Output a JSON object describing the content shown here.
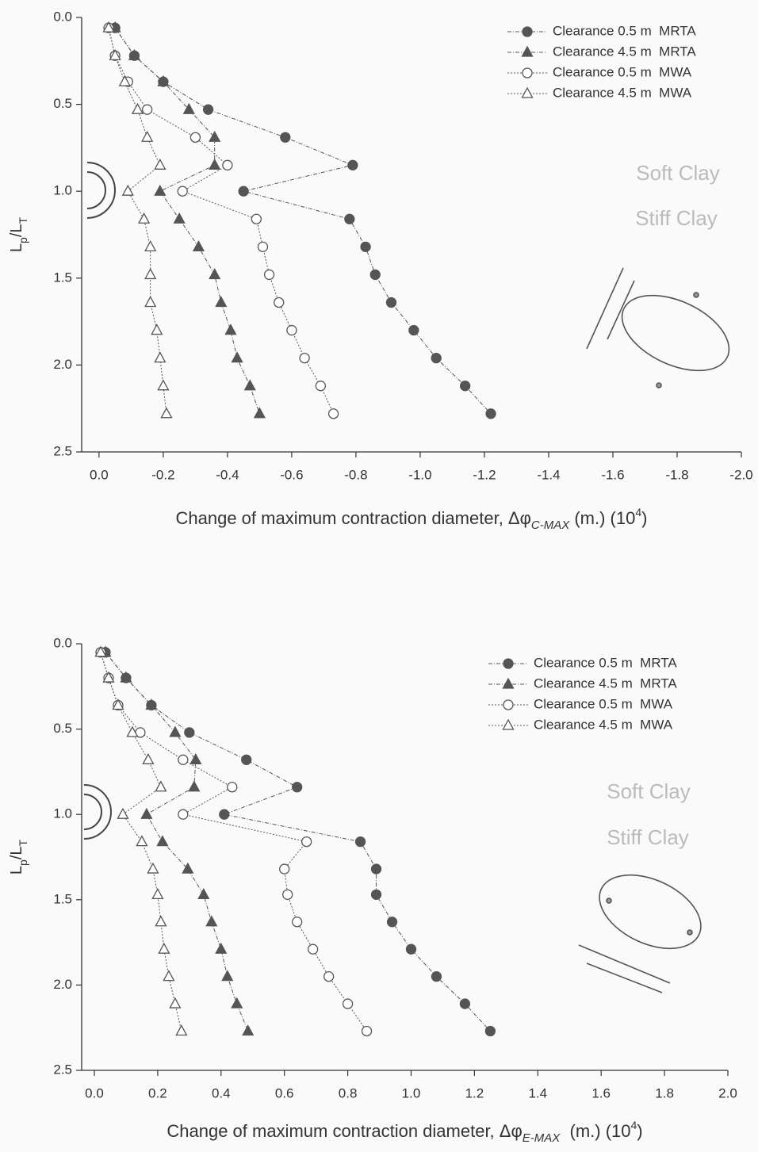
{
  "chart_data": [
    {
      "type": "line",
      "x_label": [
        "Change of maximum contraction diameter, Δφ",
        "C-MAX",
        " (m.) (10",
        "4",
        ")"
      ],
      "y_label": [
        "L",
        "p",
        "/L",
        "T"
      ],
      "xlim": [
        0.054,
        -2.0
      ],
      "xticks": [
        {
          "value": 0,
          "label": "0.0"
        },
        -0.2,
        -0.4,
        -0.6,
        -0.8,
        {
          "value": -1,
          "label": "-1.0"
        },
        -1.2,
        -1.4,
        -1.6,
        -1.8,
        {
          "value": -2,
          "label": "-2.0"
        }
      ],
      "ylim": [
        0,
        2.5
      ],
      "yticks": [
        {
          "value": 0,
          "label": "0.0"
        },
        0.5,
        {
          "value": 1,
          "label": "1.0"
        },
        1.5,
        {
          "value": 2,
          "label": "2.0"
        },
        2.5
      ],
      "legend": "upper right",
      "annotations": [
        "Soft Clay",
        "Stiff Clay"
      ],
      "series": [
        {
          "name": "Clearance 0.5 m  MRTA",
          "color": "#555555",
          "marker": "circle",
          "filled": true,
          "x": [
            -0.05,
            -0.11,
            -0.2,
            -0.34,
            -0.58,
            -0.79,
            -0.45,
            -0.78,
            -0.83,
            -0.86,
            -0.91,
            -0.98,
            -1.05,
            -1.14,
            -1.22
          ],
          "values": [
            0.06,
            0.22,
            0.37,
            0.53,
            0.69,
            0.85,
            1.0,
            1.16,
            1.32,
            1.48,
            1.64,
            1.8,
            1.96,
            2.12,
            2.28
          ]
        },
        {
          "name": "Clearance 4.5 m  MRTA",
          "color": "#555555",
          "marker": "triangle",
          "filled": true,
          "x": [
            -0.05,
            -0.11,
            -0.2,
            -0.28,
            -0.36,
            -0.36,
            -0.19,
            -0.25,
            -0.31,
            -0.36,
            -0.38,
            -0.41,
            -0.43,
            -0.47,
            -0.5
          ],
          "values": [
            0.06,
            0.22,
            0.37,
            0.53,
            0.69,
            0.85,
            1.0,
            1.16,
            1.32,
            1.48,
            1.64,
            1.8,
            1.96,
            2.12,
            2.28
          ]
        },
        {
          "name": "Clearance 0.5 m  MWA",
          "color": "#555555",
          "marker": "circle",
          "filled": false,
          "x": [
            -0.03,
            -0.05,
            -0.09,
            -0.15,
            -0.3,
            -0.4,
            -0.26,
            -0.49,
            -0.51,
            -0.53,
            -0.56,
            -0.6,
            -0.64,
            -0.69,
            -0.73
          ],
          "values": [
            0.06,
            0.22,
            0.37,
            0.53,
            0.69,
            0.85,
            1.0,
            1.16,
            1.32,
            1.48,
            1.64,
            1.8,
            1.96,
            2.12,
            2.28
          ]
        },
        {
          "name": "Clearance 4.5 m  MWA",
          "color": "#555555",
          "marker": "triangle",
          "filled": false,
          "x": [
            -0.03,
            -0.05,
            -0.08,
            -0.12,
            -0.15,
            -0.19,
            -0.09,
            -0.14,
            -0.16,
            -0.16,
            -0.16,
            -0.18,
            -0.19,
            -0.2,
            -0.21
          ],
          "values": [
            0.06,
            0.22,
            0.37,
            0.53,
            0.69,
            0.85,
            1.0,
            1.16,
            1.32,
            1.48,
            1.64,
            1.8,
            1.96,
            2.12,
            2.28
          ]
        }
      ]
    },
    {
      "type": "line",
      "x_label": [
        "Change of maximum contraction diameter, Δφ",
        "E-MAX",
        "  (m.) (10",
        "4",
        ")"
      ],
      "y_label": [
        "L",
        "p",
        "/L",
        "T"
      ],
      "xlim": [
        -0.04,
        2.0
      ],
      "xticks": [
        {
          "value": 0,
          "label": "0.0"
        },
        0.2,
        0.4,
        0.6,
        0.8,
        {
          "value": 1,
          "label": "1.0"
        },
        1.2,
        1.4,
        1.6,
        1.8,
        {
          "value": 2,
          "label": "2.0"
        }
      ],
      "ylim": [
        0,
        2.5
      ],
      "yticks": [
        {
          "value": 0,
          "label": "0.0"
        },
        0.5,
        {
          "value": 1,
          "label": "1.0"
        },
        1.5,
        {
          "value": 2,
          "label": "2.0"
        },
        2.5
      ],
      "legend": "upper right",
      "annotations": [
        "Soft Clay",
        "Stiff Clay"
      ],
      "series": [
        {
          "name": "Clearance 0.5 m  MRTA",
          "color": "#555555",
          "marker": "circle",
          "filled": true,
          "x": [
            0.035,
            0.1,
            0.18,
            0.3,
            0.48,
            0.64,
            0.41,
            0.84,
            0.89,
            0.89,
            0.94,
            1.0,
            1.08,
            1.17,
            1.25
          ],
          "values": [
            0.05,
            0.2,
            0.36,
            0.52,
            0.68,
            0.84,
            1.0,
            1.16,
            1.32,
            1.47,
            1.63,
            1.79,
            1.95,
            2.11,
            2.27
          ]
        },
        {
          "name": "Clearance 4.5 m  MRTA",
          "color": "#555555",
          "marker": "triangle",
          "filled": true,
          "x": [
            0.035,
            0.1,
            0.18,
            0.255,
            0.32,
            0.315,
            0.165,
            0.215,
            0.295,
            0.345,
            0.37,
            0.4,
            0.42,
            0.45,
            0.485
          ],
          "values": [
            0.05,
            0.2,
            0.36,
            0.52,
            0.68,
            0.84,
            1.0,
            1.16,
            1.32,
            1.47,
            1.63,
            1.79,
            1.95,
            2.11,
            2.27
          ]
        },
        {
          "name": "Clearance 0.5 m  MWA",
          "color": "#555555",
          "marker": "circle",
          "filled": false,
          "x": [
            0.02,
            0.045,
            0.075,
            0.145,
            0.28,
            0.435,
            0.28,
            0.67,
            0.6,
            0.61,
            0.64,
            0.69,
            0.74,
            0.8,
            0.86
          ],
          "values": [
            0.05,
            0.2,
            0.36,
            0.52,
            0.68,
            0.84,
            1.0,
            1.16,
            1.32,
            1.47,
            1.63,
            1.79,
            1.95,
            2.11,
            2.27
          ]
        },
        {
          "name": "Clearance 4.5 m  MWA",
          "color": "#555555",
          "marker": "triangle",
          "filled": false,
          "x": [
            0.02,
            0.045,
            0.075,
            0.12,
            0.17,
            0.21,
            0.09,
            0.15,
            0.185,
            0.2,
            0.21,
            0.22,
            0.235,
            0.255,
            0.275
          ],
          "values": [
            0.05,
            0.2,
            0.36,
            0.52,
            0.68,
            0.84,
            1.0,
            1.16,
            1.32,
            1.47,
            1.63,
            1.79,
            1.95,
            2.11,
            2.27
          ]
        }
      ]
    }
  ]
}
